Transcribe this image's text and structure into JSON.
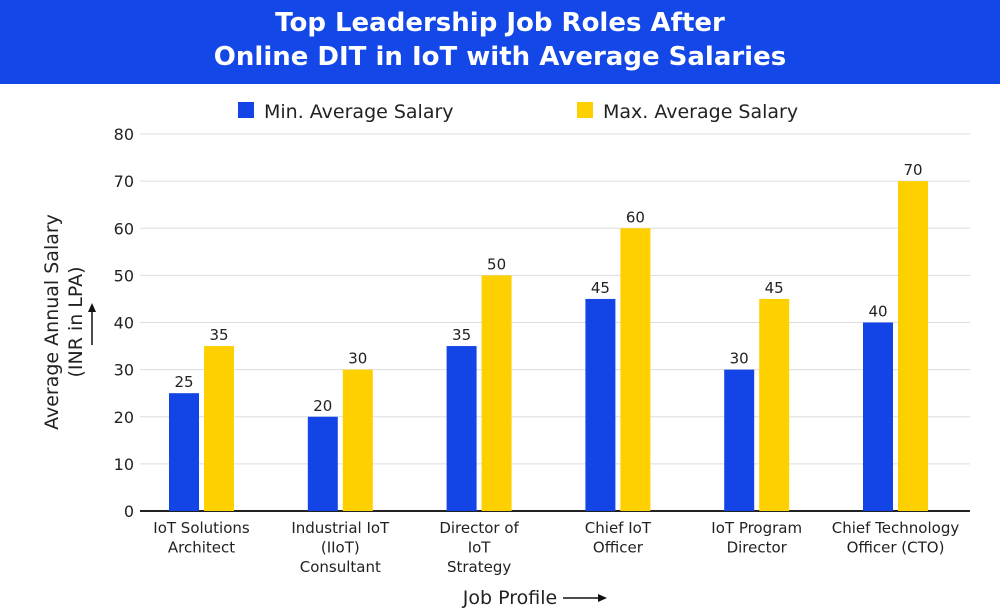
{
  "chart_data": {
    "type": "bar",
    "title_lines": [
      "Top Leadership Job Roles After",
      "Online DIT in IoT with Average Salaries"
    ],
    "xlabel": "Job Profile",
    "ylabel_lines": [
      "Average Annual Salary",
      "(INR in LPA)"
    ],
    "ylim": [
      0,
      80
    ],
    "yticks": [
      0,
      10,
      20,
      30,
      40,
      50,
      60,
      70,
      80
    ],
    "grid": true,
    "legend_position": "top",
    "categories": [
      [
        "IoT Solutions",
        "Architect"
      ],
      [
        "Industrial IoT",
        "(IIoT)",
        "Consultant"
      ],
      [
        "Director of",
        "IoT",
        "Strategy"
      ],
      [
        "Chief IoT",
        "Officer"
      ],
      [
        "IoT Program",
        "Director"
      ],
      [
        "Chief Technology",
        "Officer (CTO)"
      ]
    ],
    "series": [
      {
        "name": "Min. Average Salary",
        "color": "#1345e6",
        "values": [
          25,
          20,
          35,
          45,
          30,
          40
        ]
      },
      {
        "name": "Max. Average Salary",
        "color": "#ffd000",
        "values": [
          35,
          30,
          50,
          60,
          45,
          70
        ]
      }
    ],
    "header_color": "#1347e8"
  }
}
